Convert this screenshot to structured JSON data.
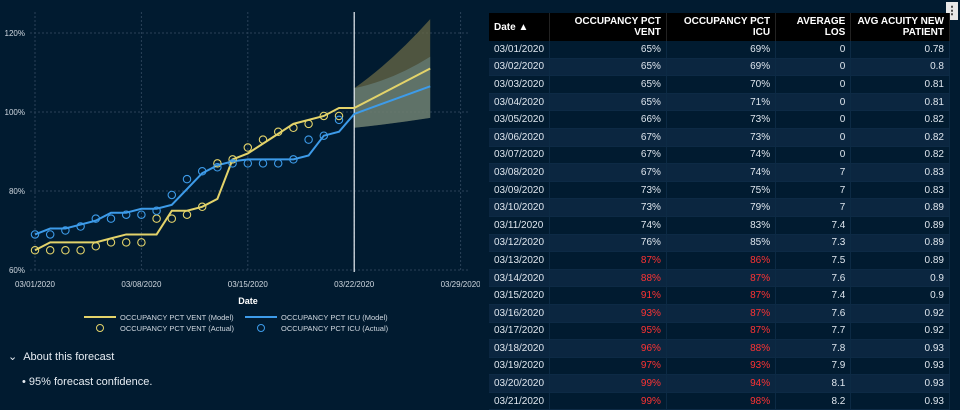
{
  "chart_data": {
    "type": "line",
    "xlabel": "Date",
    "x_ticks": [
      "03/01/2020",
      "03/08/2020",
      "03/15/2020",
      "03/22/2020",
      "03/29/2020"
    ],
    "y_ticks": [
      "60%",
      "80%",
      "100%",
      "120%"
    ],
    "ylim": [
      60,
      120
    ],
    "forecast_start": "03/22/2020",
    "legend": [
      "OCCUPANCY PCT VENT (Model)",
      "OCCUPANCY PCT ICU (Model)",
      "OCCUPANCY PCT VENT (Actual)",
      "OCCUPANCY PCT ICU (Actual)"
    ],
    "vent_actual": [
      65,
      65,
      65,
      65,
      66,
      67,
      67,
      67,
      73,
      73,
      74,
      76,
      87,
      88,
      91,
      93,
      95,
      96,
      97,
      99,
      99
    ],
    "icu_actual": [
      69,
      69,
      70,
      71,
      73,
      73,
      74,
      74,
      75,
      79,
      83,
      85,
      86,
      87,
      87,
      87,
      87,
      88,
      93,
      94,
      98
    ],
    "vent_model": [
      65,
      67,
      67,
      67,
      67,
      68,
      69,
      69,
      69,
      75,
      75,
      76,
      78,
      88,
      89.5,
      92,
      94.5,
      97,
      98,
      99,
      101,
      101
    ],
    "icu_model": [
      69,
      70.5,
      70.5,
      71.5,
      72.5,
      74.5,
      74.5,
      75.5,
      75.5,
      76.5,
      80.5,
      84.5,
      86.5,
      87.5,
      88,
      88,
      88,
      88,
      89,
      94,
      95,
      99.5
    ],
    "vent_forecast_end": 111,
    "icu_forecast_end": 106.5,
    "vent_band_end": [
      98.5,
      123.5
    ],
    "icu_band_end": [
      98.5,
      114
    ],
    "band_start": [
      96,
      106
    ],
    "colors": {
      "vent": "#e3d36a",
      "icu": "#3d9be9"
    }
  },
  "about": {
    "label": "About this forecast",
    "bullet": "95% forecast confidence."
  },
  "table": {
    "headers": [
      "Date",
      "OCCUPANCY PCT VENT",
      "OCCUPANCY PCT ICU",
      "AVERAGE LOS",
      "AVG ACUITY NEW PATIENT"
    ],
    "rows": [
      [
        "03/01/2020",
        "65%",
        "69%",
        "0",
        "0.78"
      ],
      [
        "03/02/2020",
        "65%",
        "69%",
        "0",
        "0.8"
      ],
      [
        "03/03/2020",
        "65%",
        "70%",
        "0",
        "0.81"
      ],
      [
        "03/04/2020",
        "65%",
        "71%",
        "0",
        "0.81"
      ],
      [
        "03/05/2020",
        "66%",
        "73%",
        "0",
        "0.82"
      ],
      [
        "03/06/2020",
        "67%",
        "73%",
        "0",
        "0.82"
      ],
      [
        "03/07/2020",
        "67%",
        "74%",
        "0",
        "0.82"
      ],
      [
        "03/08/2020",
        "67%",
        "74%",
        "7",
        "0.83"
      ],
      [
        "03/09/2020",
        "73%",
        "75%",
        "7",
        "0.83"
      ],
      [
        "03/10/2020",
        "73%",
        "79%",
        "7",
        "0.89"
      ],
      [
        "03/11/2020",
        "74%",
        "83%",
        "7.4",
        "0.89"
      ],
      [
        "03/12/2020",
        "76%",
        "85%",
        "7.3",
        "0.89"
      ],
      [
        "03/13/2020",
        "87%",
        "86%",
        "7.5",
        "0.89"
      ],
      [
        "03/14/2020",
        "88%",
        "87%",
        "7.6",
        "0.9"
      ],
      [
        "03/15/2020",
        "91%",
        "87%",
        "7.4",
        "0.9"
      ],
      [
        "03/16/2020",
        "93%",
        "87%",
        "7.6",
        "0.92"
      ],
      [
        "03/17/2020",
        "95%",
        "87%",
        "7.7",
        "0.92"
      ],
      [
        "03/18/2020",
        "96%",
        "88%",
        "7.8",
        "0.93"
      ],
      [
        "03/19/2020",
        "97%",
        "93%",
        "7.9",
        "0.93"
      ],
      [
        "03/20/2020",
        "99%",
        "94%",
        "8.1",
        "0.93"
      ],
      [
        "03/21/2020",
        "99%",
        "98%",
        "8.2",
        "0.93"
      ]
    ],
    "red_from_row": 12
  }
}
